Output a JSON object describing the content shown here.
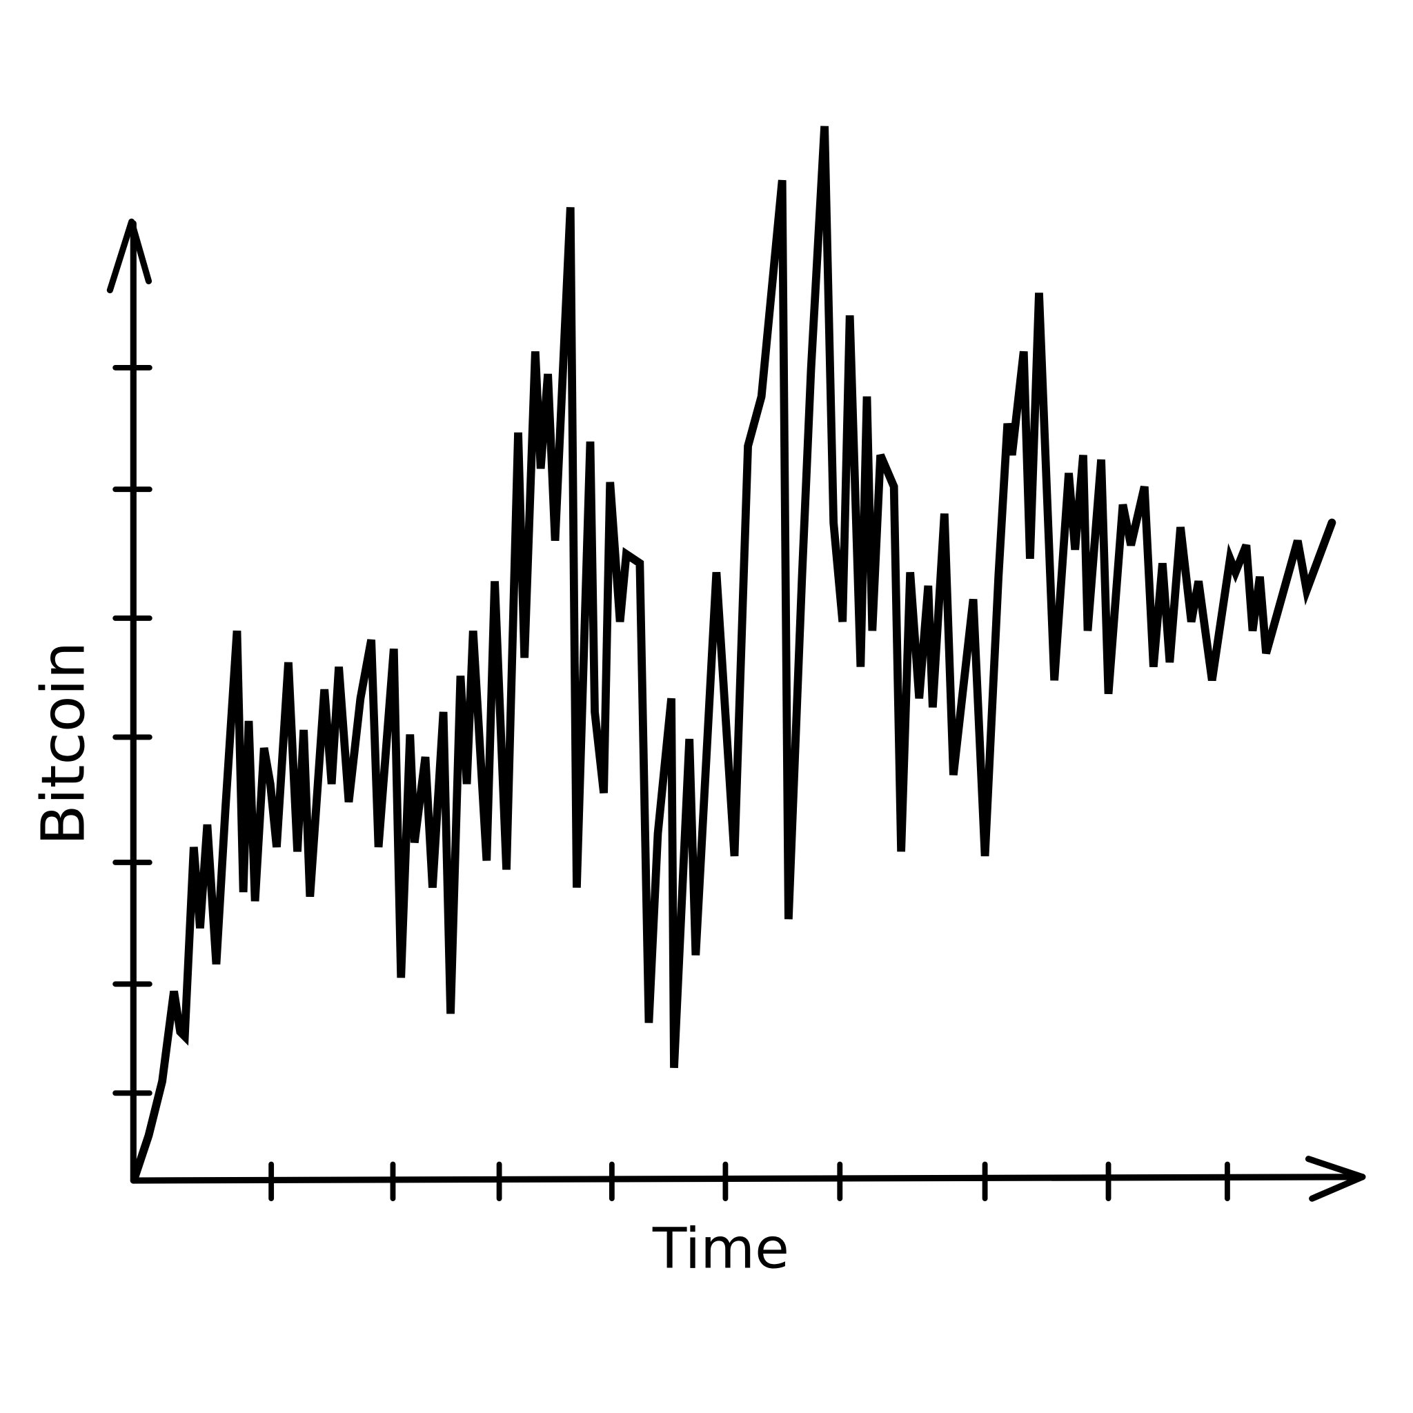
{
  "chart_data": {
    "type": "line",
    "x_label": "Time",
    "y_label": "Bitcoin",
    "color": "#000000",
    "xlim": [
      0,
      136.7
    ],
    "ylim": [
      0,
      120
    ],
    "xticks": [
      15.3,
      28.8,
      40.6,
      53.1,
      65.7,
      78.4,
      94.5,
      108.2,
      121.4
    ],
    "yticks": [
      9.7,
      21.8,
      35.3,
      49.2,
      62.4,
      76.7,
      90.2
    ],
    "x": [
      0.2,
      1.7,
      3.2,
      4.5,
      5.2,
      5.7,
      6.7,
      7.4,
      8.2,
      9.2,
      10.2,
      11.5,
      12.2,
      12.8,
      13.5,
      14.5,
      15.2,
      15.9,
      17.2,
      18.2,
      18.9,
      19.6,
      21.2,
      22,
      22.8,
      23.9,
      25.2,
      26.4,
      27.2,
      28.9,
      29.7,
      30.7,
      31.2,
      32.4,
      33.2,
      34.4,
      35.2,
      36.3,
      37,
      37.7,
      39.2,
      40.1,
      41.4,
      42.7,
      43.4,
      44.6,
      45.2,
      46,
      46.8,
      48.5,
      49.2,
      50.7,
      51.2,
      52.2,
      52.9,
      54,
      54.7,
      56.2,
      57.2,
      58.2,
      59.7,
      60,
      61.7,
      62.4,
      64.7,
      66.7,
      68.2,
      69.7,
      72,
      72.7,
      74.2,
      75.2,
      76.7,
      77.7,
      78.7,
      79.5,
      80.7,
      81.4,
      82,
      82.9,
      84.4,
      85.2,
      86.2,
      87.2,
      88.2,
      88.7,
      90,
      91,
      93.2,
      94.5,
      96,
      97,
      97.5,
      98.8,
      99.5,
      100.5,
      102.2,
      103.8,
      104.5,
      105.4,
      105.9,
      107.4,
      108.2,
      109.8,
      110.7,
      112.2,
      113.2,
      114.2,
      115,
      116.2,
      117.4,
      118.2,
      119.7,
      121.7,
      122.3,
      123.5,
      124.2,
      125,
      125.7,
      129.2,
      130.2,
      133
    ],
    "values": [
      0.5,
      5,
      11,
      21,
      16.5,
      16,
      37,
      28,
      39.5,
      24,
      41,
      61,
      32,
      51,
      31,
      48,
      44,
      37,
      57.5,
      36.5,
      50,
      31.5,
      54.5,
      44,
      57,
      42,
      53.5,
      60,
      37,
      59,
      22.5,
      49.5,
      37.5,
      47,
      32.5,
      52,
      18.5,
      56,
      44,
      61,
      35.5,
      66.5,
      34.5,
      83,
      58,
      92,
      79,
      89.5,
      71,
      108,
      32.5,
      82,
      52,
      43,
      77.5,
      62,
      69.5,
      68.5,
      17.5,
      38.5,
      53.5,
      12.5,
      49,
      25,
      67.5,
      36,
      81.5,
      87,
      111,
      29,
      67,
      90,
      117,
      73,
      62,
      96,
      57,
      87,
      61,
      80.5,
      77,
      36.5,
      67.5,
      53.5,
      66,
      52.5,
      74,
      45,
      64.5,
      36,
      67,
      84,
      80.5,
      92,
      69,
      98.5,
      55.5,
      78.5,
      70,
      80.5,
      61,
      80,
      54,
      75,
      70.5,
      77,
      57,
      68.5,
      57.5,
      72.5,
      62,
      66.5,
      55.5,
      69,
      67.5,
      70.5,
      61,
      67,
      58.5,
      71,
      65.5,
      73
    ]
  }
}
